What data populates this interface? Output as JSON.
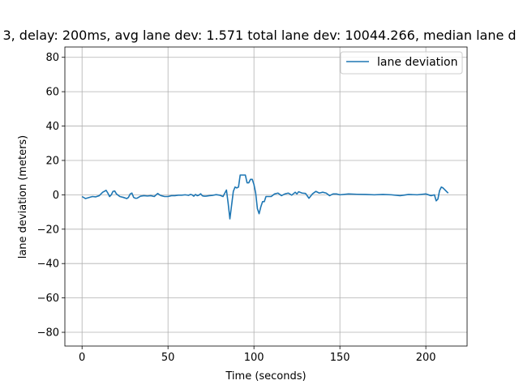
{
  "chart_data": {
    "type": "line",
    "title": "3, delay: 200ms, avg lane dev: 1.571 total lane dev: 10044.266, median lane d",
    "xlabel": "Time (seconds)",
    "ylabel": "lane deviation (meters)",
    "xlim": [
      -10,
      224
    ],
    "ylim": [
      -88,
      86
    ],
    "xticks": [
      0,
      50,
      100,
      150,
      200
    ],
    "yticks": [
      -80,
      -60,
      -40,
      -20,
      0,
      20,
      40,
      60,
      80
    ],
    "xtick_labels": [
      "0",
      "50",
      "100",
      "150",
      "200"
    ],
    "ytick_labels": [
      "−80",
      "−60",
      "−40",
      "−20",
      "0",
      "20",
      "40",
      "60",
      "80"
    ],
    "grid": true,
    "legend_position": "top-right",
    "series": [
      {
        "name": "lane deviation",
        "color": "#1f77b4",
        "x": [
          0,
          2,
          4,
          6,
          8,
          10,
          12,
          14,
          15,
          16,
          17,
          18,
          19,
          20,
          22,
          24,
          26,
          27,
          28,
          29,
          30,
          31,
          32,
          34,
          36,
          38,
          40,
          42,
          44,
          45,
          46,
          48,
          50,
          52,
          54,
          56,
          58,
          60,
          62,
          63,
          64,
          65,
          66,
          67,
          68,
          69,
          70,
          71,
          72,
          74,
          76,
          78,
          80,
          82,
          84,
          85,
          86,
          87,
          88,
          89,
          90,
          91,
          92,
          93,
          94,
          95,
          96,
          97,
          98,
          99,
          100,
          101,
          102,
          103,
          104,
          105,
          106,
          107,
          108,
          110,
          112,
          114,
          116,
          118,
          120,
          122,
          124,
          125,
          126,
          128,
          130,
          132,
          134,
          136,
          138,
          140,
          142,
          144,
          146,
          148,
          150,
          155,
          160,
          165,
          170,
          175,
          180,
          185,
          190,
          195,
          200,
          203,
          205,
          206,
          207,
          208,
          209,
          210,
          211,
          212,
          213
        ],
        "y": [
          -1.0,
          -2.2,
          -1.6,
          -1.0,
          -1.2,
          -0.5,
          1.5,
          2.6,
          1.0,
          -1.0,
          0.0,
          2.0,
          2.2,
          0.5,
          -1.0,
          -1.5,
          -2.2,
          -1.5,
          0.5,
          1.0,
          -1.5,
          -2.0,
          -2.0,
          -0.8,
          -0.5,
          -0.7,
          -0.5,
          -1.0,
          0.8,
          0.0,
          -0.5,
          -1.0,
          -1.0,
          -0.5,
          -0.5,
          -0.2,
          -0.2,
          0.0,
          -0.3,
          0.2,
          0.0,
          -0.8,
          0.2,
          -0.5,
          -0.2,
          0.6,
          -0.6,
          -0.8,
          -0.8,
          -0.5,
          -0.3,
          0.1,
          -0.2,
          -1.0,
          2.8,
          -5.0,
          -14.0,
          -6.0,
          2.0,
          4.5,
          4.0,
          4.5,
          11.5,
          11.5,
          11.5,
          11.5,
          7.0,
          7.0,
          9.0,
          9.0,
          6.0,
          1.0,
          -8.0,
          -11.0,
          -7.0,
          -4.0,
          -4.0,
          -1.0,
          -1.0,
          -1.0,
          0.5,
          1.0,
          -0.5,
          0.5,
          1.0,
          -0.2,
          1.5,
          0.5,
          1.8,
          1.0,
          0.8,
          -2.0,
          0.5,
          2.0,
          1.0,
          1.5,
          1.0,
          -0.5,
          0.5,
          0.5,
          0.0,
          0.5,
          0.3,
          0.2,
          0.0,
          0.2,
          0.0,
          -0.5,
          0.2,
          0.0,
          0.5,
          -0.5,
          0.0,
          -3.5,
          -2.5,
          2.5,
          4.5,
          4.0,
          3.0,
          2.0,
          1.0
        ]
      }
    ]
  }
}
